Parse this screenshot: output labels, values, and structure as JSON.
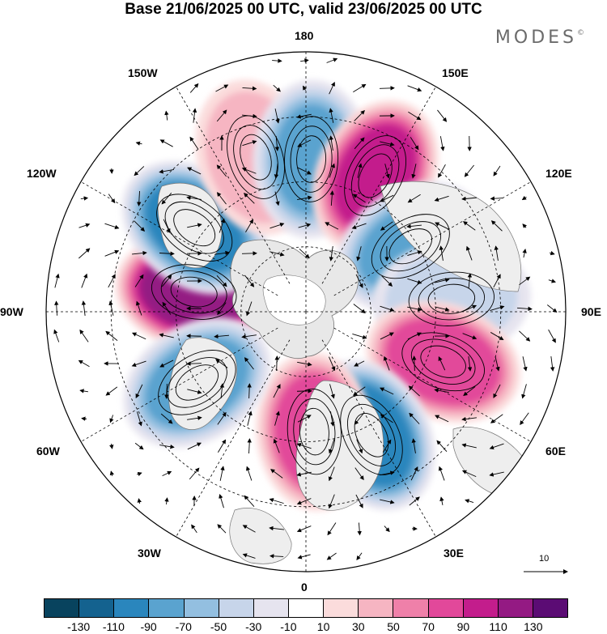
{
  "title": "Base 21/06/2025 00 UTC, valid 23/06/2025 00 UTC",
  "brand": "MODES",
  "brand_mark": "©",
  "longitude_labels": {
    "top": "180",
    "bottom": "0",
    "left": "90W",
    "right": "90E",
    "upper_left_1": "150W",
    "upper_left_2": "120W",
    "upper_right_1": "150E",
    "upper_right_2": "120E",
    "lower_left_1": "60W",
    "lower_left_2": "30W",
    "lower_right_1": "60E",
    "lower_right_2": "30E"
  },
  "reference_vector_label": "10",
  "colorbar": {
    "colors": [
      "#08435e",
      "#14628f",
      "#2a86bd",
      "#5aa3cf",
      "#93bfe0",
      "#c7d5ea",
      "#e6e4ef",
      "#ffffff",
      "#fbdcdc",
      "#f6b5c2",
      "#ef80a9",
      "#e2489a",
      "#c31d8c",
      "#941a83",
      "#5b0c74"
    ],
    "tick_labels": [
      "-130",
      "-110",
      "-90",
      "-70",
      "-50",
      "-30",
      "-10",
      "10",
      "30",
      "50",
      "70",
      "90",
      "110",
      "130"
    ]
  },
  "map_data": {
    "projection": "north-polar-stereographic",
    "anomalies": [
      {
        "lon": -100,
        "lat": 55,
        "value": 120
      },
      {
        "lon": -127,
        "lat": 47,
        "value": -95
      },
      {
        "lon": -162,
        "lat": 40,
        "value": 45
      },
      {
        "lon": 178,
        "lat": 43,
        "value": -70
      },
      {
        "lon": 153,
        "lat": 43,
        "value": 95
      },
      {
        "lon": 122,
        "lat": 52,
        "value": -75
      },
      {
        "lon": 95,
        "lat": 45,
        "value": -40
      },
      {
        "lon": 70,
        "lat": 45,
        "value": 85
      },
      {
        "lon": 28,
        "lat": 47,
        "value": -95
      },
      {
        "lon": 4,
        "lat": 53,
        "value": 80
      },
      {
        "lon": -57,
        "lat": 50,
        "value": -75
      }
    ]
  }
}
